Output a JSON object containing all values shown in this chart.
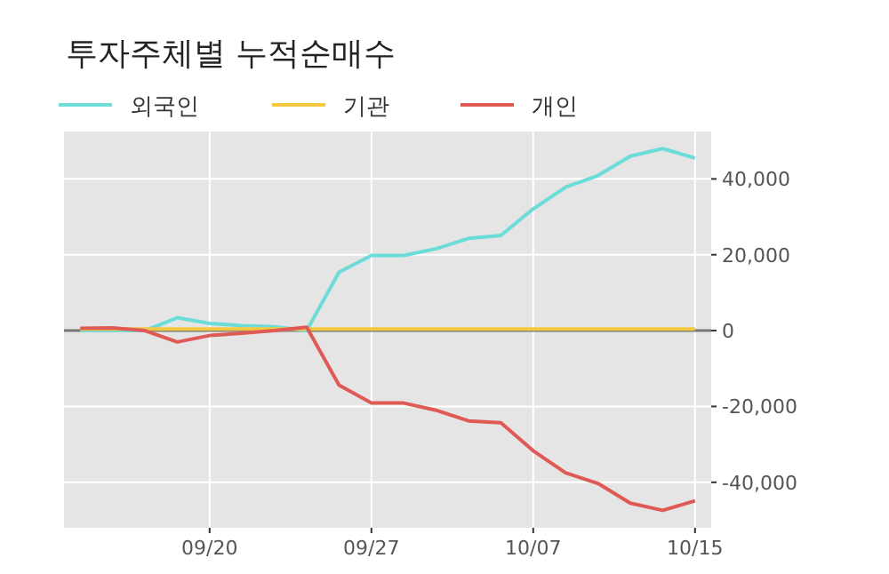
{
  "chart_data": {
    "type": "line",
    "title": "투자주체별 누적순매수",
    "categories": [
      null,
      null,
      null,
      null,
      "09/20",
      null,
      null,
      null,
      null,
      "09/27",
      null,
      null,
      null,
      null,
      "10/07",
      null,
      null,
      null,
      null,
      "10/15"
    ],
    "series": [
      {
        "name": "외국인",
        "color": "#6cdcd8",
        "values": [
          0,
          0,
          0,
          3400,
          1900,
          1300,
          1000,
          0,
          15400,
          19800,
          19800,
          21600,
          24300,
          25100,
          32100,
          37800,
          40900,
          46000,
          48000,
          45500
        ]
      },
      {
        "name": "기관",
        "color": "#f5c842",
        "values": [
          400,
          400,
          400,
          400,
          400,
          400,
          400,
          400,
          400,
          400,
          400,
          400,
          400,
          400,
          400,
          400,
          400,
          400,
          400,
          400
        ]
      },
      {
        "name": "개인",
        "color": "#e05a55",
        "values": [
          600,
          700,
          0,
          -3000,
          -1300,
          -700,
          0,
          900,
          -14400,
          -19100,
          -19100,
          -21000,
          -23800,
          -24300,
          -31700,
          -37500,
          -40300,
          -45500,
          -47400,
          -44900
        ]
      }
    ],
    "ylim": [
      -52000,
      52500
    ],
    "yticks": [
      {
        "value": -40000,
        "label": "-40,000"
      },
      {
        "value": -20000,
        "label": "-20,000"
      },
      0,
      {
        "value": 20000,
        "label": "20,000"
      },
      {
        "value": 40000,
        "label": "40,000"
      }
    ],
    "ref_lines": [
      {
        "axis": "y",
        "value": 0,
        "color": "#777777"
      }
    ],
    "grid": true,
    "legend": "top left",
    "line_style": "solid",
    "marker": "none"
  }
}
